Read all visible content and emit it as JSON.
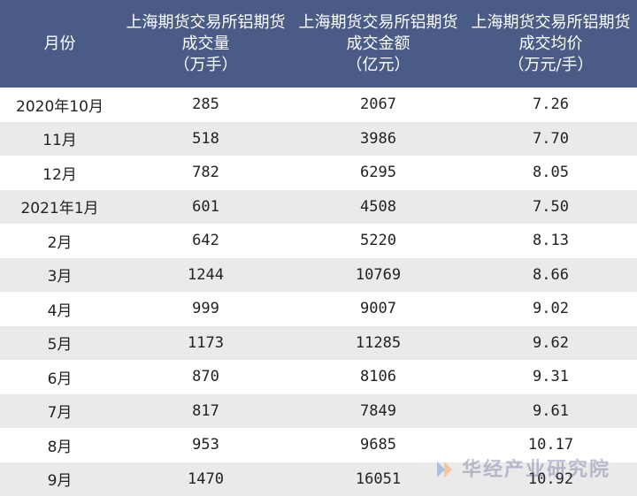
{
  "table": {
    "headers": [
      {
        "lines": [
          "月份"
        ]
      },
      {
        "lines": [
          "上海期货交易所铝期货",
          "成交量",
          "（万手）"
        ]
      },
      {
        "lines": [
          "上海期货交易所铝期货",
          "成交金额",
          "（亿元）"
        ]
      },
      {
        "lines": [
          "上海期货交易所铝期货",
          "成交均价",
          "（万元/手）"
        ]
      }
    ],
    "rows": [
      [
        "2020年10月",
        "285",
        "2067",
        "7.26"
      ],
      [
        "11月",
        "518",
        "3986",
        "7.70"
      ],
      [
        "12月",
        "782",
        "6295",
        "8.05"
      ],
      [
        "2021年1月",
        "601",
        "4508",
        "7.50"
      ],
      [
        "2月",
        "642",
        "5220",
        "8.13"
      ],
      [
        "3月",
        "1244",
        "10769",
        "8.66"
      ],
      [
        "4月",
        "999",
        "9007",
        "9.02"
      ],
      [
        "5月",
        "1173",
        "11285",
        "9.62"
      ],
      [
        "6月",
        "870",
        "8106",
        "9.31"
      ],
      [
        "7月",
        "817",
        "7849",
        "9.61"
      ],
      [
        "8月",
        "953",
        "9685",
        "10.17"
      ],
      [
        "9月",
        "1470",
        "16051",
        "10.92"
      ]
    ]
  },
  "watermark": {
    "text": "华经产业研究院",
    "logo_colors": [
      "#3d6fd1",
      "#f08a24"
    ]
  },
  "colors": {
    "header_bg": "#4a5b86",
    "header_text": "#ffffff",
    "stripe": "#eaeaea"
  }
}
